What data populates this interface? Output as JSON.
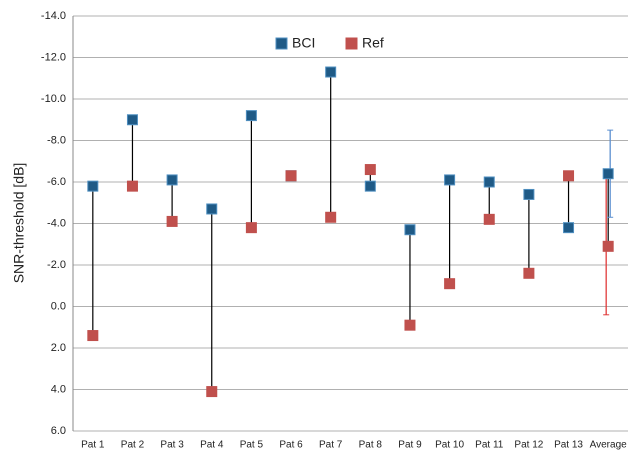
{
  "chart_data": {
    "type": "dot",
    "y_label": "SNR-threshold [dB]",
    "categories": [
      "Pat 1",
      "Pat 2",
      "Pat 3",
      "Pat 4",
      "Pat 5",
      "Pat 6",
      "Pat 7",
      "Pat 8",
      "Pat 9",
      "Pat 10",
      "Pat 11",
      "Pat 12",
      "Pat 13",
      "Average"
    ],
    "series": [
      {
        "name": "BCI",
        "color": "#1f5a86",
        "values": [
          -5.8,
          -9.0,
          -6.1,
          -4.7,
          -9.2,
          -6.3,
          -11.3,
          -5.8,
          -3.7,
          -6.1,
          -6.0,
          -5.4,
          -3.8,
          -6.4
        ],
        "errors": [
          null,
          null,
          null,
          null,
          null,
          null,
          null,
          null,
          null,
          null,
          null,
          null,
          null,
          2.1
        ],
        "error_color": "#5b8fd0"
      },
      {
        "name": "Ref",
        "color": "#c0504d",
        "values": [
          1.4,
          -5.8,
          -4.1,
          4.1,
          -3.8,
          -6.3,
          -4.3,
          -6.6,
          0.9,
          -1.1,
          -4.2,
          -1.6,
          -6.3,
          -2.9
        ],
        "errors": [
          null,
          null,
          null,
          null,
          null,
          null,
          null,
          null,
          null,
          null,
          null,
          null,
          null,
          3.3
        ],
        "error_color": "#e03a3a"
      }
    ],
    "connector_color": "#000000",
    "ylim": [
      -14,
      6
    ],
    "y_inverted": true,
    "yticks": [
      {
        "value": -14,
        "label": "-14.0"
      },
      {
        "value": -12,
        "label": "-12.0"
      },
      {
        "value": -10,
        "label": "-10.0"
      },
      {
        "value": -8,
        "label": "-8.0"
      },
      {
        "value": -6,
        "label": "-6.0"
      },
      {
        "value": -4,
        "label": "-4.0"
      },
      {
        "value": -2,
        "label": "-2.0"
      },
      {
        "value": 0,
        "label": "0.0"
      },
      {
        "value": 2,
        "label": "2.0"
      },
      {
        "value": 4,
        "label": "4.0"
      },
      {
        "value": 6,
        "label": "6.0"
      }
    ],
    "grid": true
  }
}
